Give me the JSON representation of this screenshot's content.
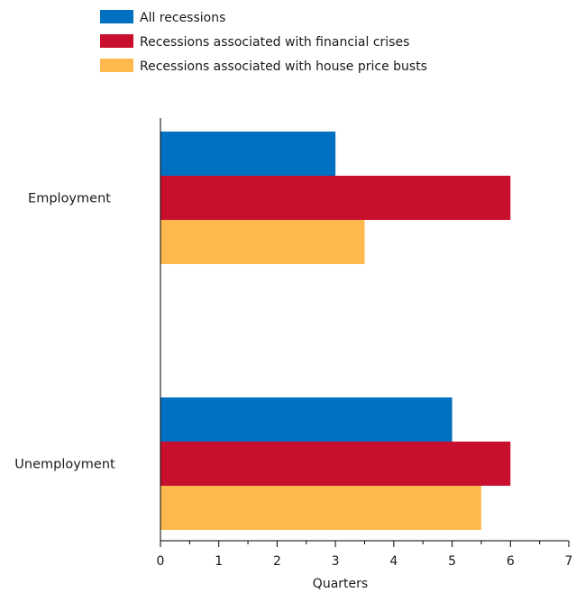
{
  "chart_data": {
    "type": "bar",
    "orientation": "horizontal",
    "title": "",
    "xlabel": "Quarters",
    "ylabel": "",
    "xlim": [
      0,
      7
    ],
    "xticks": [
      0,
      1,
      2,
      3,
      4,
      5,
      6,
      7
    ],
    "minor_ticks": true,
    "grid": false,
    "legend_position": "top-left",
    "categories": [
      "Employment",
      "Unemployment"
    ],
    "series": [
      {
        "name": "All recessions",
        "color": "#0070C0",
        "values": [
          3.0,
          5.0
        ]
      },
      {
        "name": "Recessions associated with financial crises",
        "color": "#C8102E",
        "values": [
          6.0,
          6.0
        ]
      },
      {
        "name": "Recessions associated with house price busts",
        "color": "#FDB94D",
        "values": [
          3.5,
          5.5
        ]
      }
    ]
  }
}
